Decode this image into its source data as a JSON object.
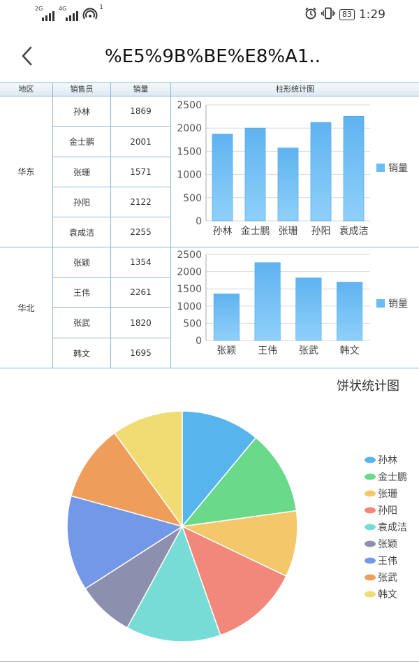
{
  "status": {
    "net1": "2G",
    "net2": "4G",
    "hotspot_count": "1",
    "battery": "83",
    "time": "1:29"
  },
  "header": {
    "title": "%E5%9B%BE%E8%A1.."
  },
  "table": {
    "headers": {
      "region": "地区",
      "seller": "销售员",
      "sales": "销量",
      "chart": "柱形统计图"
    },
    "regions": [
      {
        "name": "华东",
        "rows": [
          {
            "seller": "孙林",
            "sales": "1869"
          },
          {
            "seller": "金士鹏",
            "sales": "2001"
          },
          {
            "seller": "张珊",
            "sales": "1571"
          },
          {
            "seller": "孙阳",
            "sales": "2122"
          },
          {
            "seller": "袁成洁",
            "sales": "2255"
          }
        ]
      },
      {
        "name": "华北",
        "rows": [
          {
            "seller": "张颖",
            "sales": "1354"
          },
          {
            "seller": "王伟",
            "sales": "2261"
          },
          {
            "seller": "张武",
            "sales": "1820"
          },
          {
            "seller": "韩文",
            "sales": "1695"
          }
        ]
      }
    ]
  },
  "chart_data": [
    {
      "type": "bar",
      "categories": [
        "孙林",
        "金士鹏",
        "张珊",
        "孙阳",
        "袁成洁"
      ],
      "series": [
        {
          "name": "销量",
          "values": [
            1869,
            2001,
            1571,
            2122,
            2255
          ]
        }
      ],
      "ylim": [
        0,
        2500
      ],
      "yticks": [
        "0",
        "500",
        "1000",
        "1500",
        "2000",
        "2500"
      ],
      "grid": true,
      "legend": "right"
    },
    {
      "type": "bar",
      "categories": [
        "张颖",
        "王伟",
        "张武",
        "韩文"
      ],
      "series": [
        {
          "name": "销量",
          "values": [
            1354,
            2261,
            1820,
            1695
          ]
        }
      ],
      "ylim": [
        0,
        2500
      ],
      "yticks": [
        "0",
        "500",
        "1000",
        "1500",
        "2000",
        "2500"
      ],
      "grid": true,
      "legend": "right"
    },
    {
      "type": "pie",
      "title": "饼状统计图",
      "categories": [
        "孙林",
        "金士鹏",
        "张珊",
        "孙阳",
        "袁成洁",
        "张颖",
        "王伟",
        "张武",
        "韩文"
      ],
      "values": [
        1869,
        2001,
        1571,
        2122,
        2255,
        1354,
        2261,
        1820,
        1695
      ],
      "colors": [
        "#58b4ec",
        "#6ad98a",
        "#f4c86a",
        "#f2877b",
        "#78dcd6",
        "#8d8fae",
        "#7498e8",
        "#ee9d5a",
        "#f0dc72"
      ],
      "legend": "right"
    }
  ],
  "colors": {
    "bar": "#6bbcf2",
    "border": "#8fb7d8",
    "grid": "#d8d8d8"
  }
}
